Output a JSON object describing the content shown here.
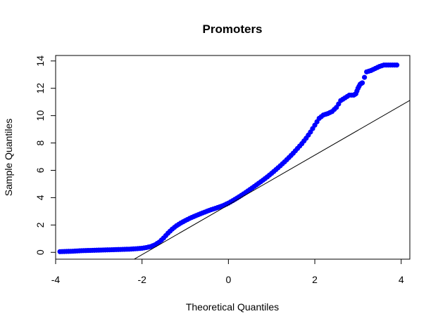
{
  "chart_data": {
    "type": "scatter",
    "title": "Promoters",
    "xlabel": "Theoretical Quantiles",
    "ylabel": "Sample Quantiles",
    "xlim": [
      -4.0,
      4.2
    ],
    "ylim": [
      -0.5,
      14.4
    ],
    "x_ticks": [
      "-4",
      "-2",
      "0",
      "2",
      "4"
    ],
    "y_ticks": [
      "0",
      "2",
      "4",
      "6",
      "8",
      "10",
      "12",
      "14"
    ],
    "grid": false,
    "legend": "none",
    "point_color": "#0000ff",
    "line_color": "#000000",
    "reference_line": {
      "intercept": 3.47,
      "slope": 1.82
    },
    "points": {
      "x": [
        -3.9,
        -3.6,
        -3.5,
        -3.4,
        -3.3,
        -3.2,
        -3.1,
        -3.0,
        -2.9,
        -2.8,
        -2.7,
        -2.6,
        -2.5,
        -2.4,
        -2.3,
        -2.2,
        -2.1,
        -2.0,
        -1.9,
        -1.8,
        -1.7,
        -1.6,
        -1.5,
        -1.4,
        -1.3,
        -1.2,
        -1.1,
        -1.0,
        -0.9,
        -0.8,
        -0.7,
        -0.6,
        -0.5,
        -0.4,
        -0.3,
        -0.2,
        -0.1,
        0.0,
        0.1,
        0.2,
        0.3,
        0.4,
        0.5,
        0.6,
        0.7,
        0.8,
        0.9,
        1.0,
        1.1,
        1.2,
        1.3,
        1.4,
        1.5,
        1.6,
        1.7,
        1.8,
        1.9,
        2.0,
        2.1,
        2.2,
        2.3,
        2.4,
        2.5,
        2.6,
        2.7,
        2.8,
        2.9,
        2.95,
        3.0,
        3.05,
        3.1,
        3.2,
        3.3,
        3.5,
        3.6,
        3.9
      ],
      "y": [
        0.05,
        0.08,
        0.1,
        0.12,
        0.13,
        0.14,
        0.15,
        0.16,
        0.17,
        0.18,
        0.19,
        0.2,
        0.21,
        0.22,
        0.23,
        0.25,
        0.27,
        0.3,
        0.35,
        0.42,
        0.55,
        0.75,
        1.05,
        1.4,
        1.7,
        1.95,
        2.15,
        2.32,
        2.48,
        2.62,
        2.75,
        2.88,
        3.0,
        3.12,
        3.22,
        3.33,
        3.45,
        3.6,
        3.78,
        3.97,
        4.17,
        4.38,
        4.6,
        4.82,
        5.05,
        5.28,
        5.52,
        5.78,
        6.05,
        6.33,
        6.62,
        6.93,
        7.25,
        7.6,
        7.95,
        8.35,
        8.8,
        9.3,
        9.8,
        10.05,
        10.15,
        10.3,
        10.6,
        11.1,
        11.3,
        11.5,
        11.5,
        11.6,
        12.0,
        12.3,
        12.4,
        13.2,
        13.3,
        13.6,
        13.7,
        13.7
      ]
    }
  }
}
